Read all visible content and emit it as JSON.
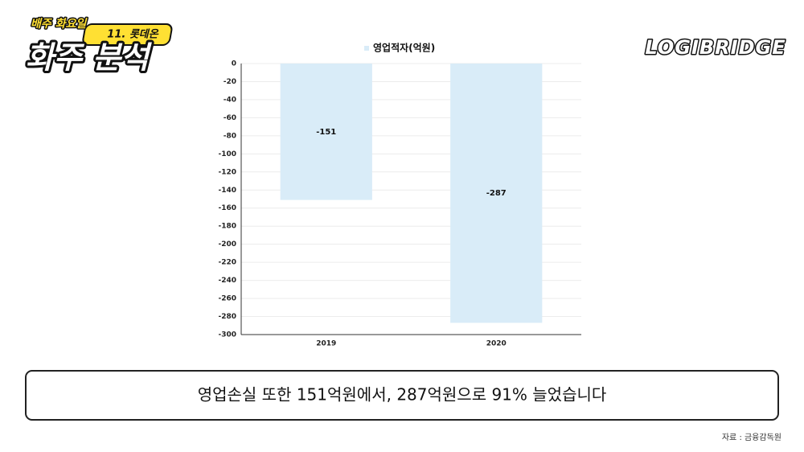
{
  "header": {
    "series_label": "배주 화요일",
    "episode": "11. 롯데온",
    "title": "화주 분석",
    "brand": "LOGIBRIDGE"
  },
  "chart_data": {
    "type": "bar",
    "legend": "영업적자(억원)",
    "categories": [
      "2019",
      "2020"
    ],
    "values": [
      -151,
      -287
    ],
    "color": "#d9ecf8",
    "ylim": [
      -300,
      0
    ],
    "yticks": [
      0,
      -20,
      -40,
      -60,
      -80,
      -100,
      -120,
      -140,
      -160,
      -180,
      -200,
      -220,
      -240,
      -260,
      -280,
      -300
    ],
    "grid": true
  },
  "caption": "영업손실 또한 151억원에서, 287억원으로 91% 늘었습니다",
  "source": "자료 : 금융감독원"
}
